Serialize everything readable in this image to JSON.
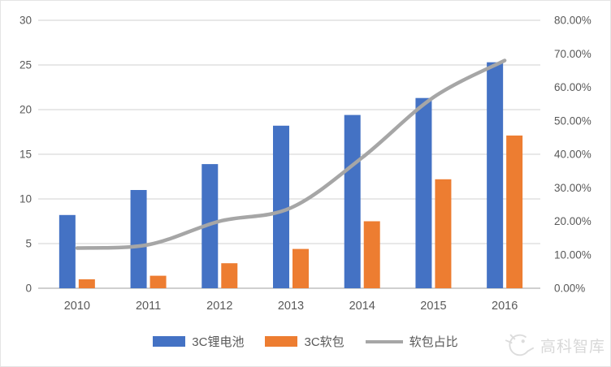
{
  "chart_data": {
    "type": "combo",
    "title": "",
    "categories": [
      "2010",
      "2011",
      "2012",
      "2013",
      "2014",
      "2015",
      "2016"
    ],
    "series": [
      {
        "name": "3C锂电池",
        "type": "bar",
        "axis": "left",
        "color": "#4472C4",
        "values": [
          8.2,
          11,
          13.9,
          18.2,
          19.4,
          21.3,
          25.3
        ]
      },
      {
        "name": "3C软包",
        "type": "bar",
        "axis": "left",
        "color": "#ED7D31",
        "values": [
          1,
          1.4,
          2.8,
          4.4,
          7.5,
          12.2,
          17.1
        ]
      },
      {
        "name": "软包占比",
        "type": "line",
        "axis": "right",
        "color": "#A6A6A6",
        "smooth": true,
        "values": [
          12,
          13,
          20,
          24,
          39,
          57,
          68
        ]
      }
    ],
    "left_axis": {
      "min": 0,
      "max": 30,
      "step": 5,
      "tick_labels": [
        "0",
        "5",
        "10",
        "15",
        "20",
        "25",
        "30"
      ]
    },
    "right_axis": {
      "min": 0,
      "max": 80,
      "step": 10,
      "format": "percent",
      "tick_labels": [
        "0.00%",
        "10.00%",
        "20.00%",
        "30.00%",
        "40.00%",
        "50.00%",
        "60.00%",
        "70.00%",
        "80.00%"
      ]
    },
    "grid": true,
    "legend_position": "bottom"
  },
  "watermark": {
    "text": "高科智库"
  },
  "colors": {
    "grid": "#DBDBDB",
    "baseline": "#CFCFCF",
    "axis_text": "#595959",
    "watermark": "#D8D8D8",
    "background": "#FFFFFF"
  }
}
